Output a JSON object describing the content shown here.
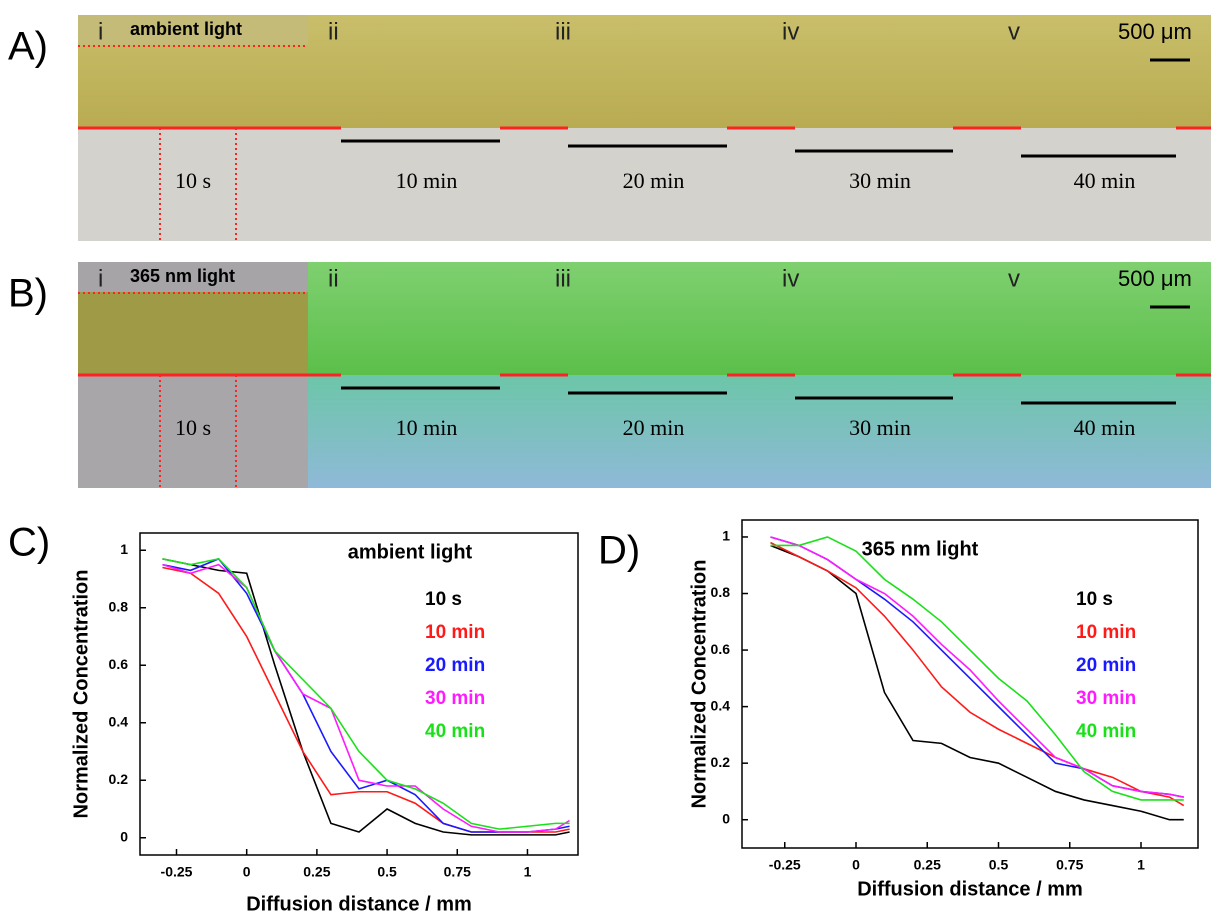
{
  "panels": [
    {
      "label": "A)",
      "light": "ambient light",
      "scale": "500 μm",
      "numerals": [
        "i",
        "ii",
        "iii",
        "iv",
        "v"
      ],
      "times": [
        "10 s",
        "10 min",
        "20 min",
        "30 min",
        "40 min"
      ]
    },
    {
      "label": "B)",
      "light": "365 nm light",
      "scale": "500 μm",
      "numerals": [
        "i",
        "ii",
        "iii",
        "iv",
        "v"
      ],
      "times": [
        "10 s",
        "10 min",
        "20 min",
        "30 min",
        "40 min"
      ]
    }
  ],
  "chart_data": [
    {
      "type": "line",
      "label": "C)",
      "title": "ambient light",
      "xlabel": "Diffusion distance / mm",
      "ylabel": "Normalized Concentration",
      "x": [
        -0.3,
        -0.2,
        -0.1,
        0,
        0.1,
        0.2,
        0.3,
        0.4,
        0.5,
        0.6,
        0.7,
        0.8,
        0.9,
        1.0,
        1.1,
        1.15
      ],
      "series": [
        {
          "name": "10 s",
          "color": "#000000",
          "values": [
            0.97,
            0.95,
            0.93,
            0.92,
            0.6,
            0.3,
            0.05,
            0.02,
            0.1,
            0.05,
            0.02,
            0.01,
            0.01,
            0.01,
            0.01,
            0.02
          ]
        },
        {
          "name": "10 min",
          "color": "#ff1a1a",
          "values": [
            0.94,
            0.92,
            0.85,
            0.7,
            0.5,
            0.3,
            0.15,
            0.16,
            0.16,
            0.12,
            0.05,
            0.02,
            0.02,
            0.02,
            0.02,
            0.03
          ]
        },
        {
          "name": "20 min",
          "color": "#1a1aff",
          "values": [
            0.95,
            0.93,
            0.97,
            0.85,
            0.65,
            0.5,
            0.3,
            0.17,
            0.2,
            0.15,
            0.05,
            0.02,
            0.02,
            0.02,
            0.03,
            0.04
          ]
        },
        {
          "name": "30 min",
          "color": "#ff1aff",
          "values": [
            0.95,
            0.92,
            0.95,
            0.87,
            0.65,
            0.5,
            0.45,
            0.2,
            0.18,
            0.18,
            0.1,
            0.04,
            0.02,
            0.02,
            0.03,
            0.06
          ]
        },
        {
          "name": "40 min",
          "color": "#1ae01a",
          "values": [
            0.97,
            0.95,
            0.97,
            0.87,
            0.65,
            0.55,
            0.45,
            0.3,
            0.2,
            0.17,
            0.12,
            0.05,
            0.03,
            0.04,
            0.05,
            0.05
          ]
        }
      ],
      "xlim": [
        -0.38,
        1.18
      ],
      "ylim": [
        -0.06,
        1.06
      ],
      "xticks": [
        -0.25,
        0,
        0.25,
        0.5,
        0.75,
        1
      ],
      "yticks": [
        0,
        0.2,
        0.4,
        0.6,
        0.8,
        1
      ]
    },
    {
      "type": "line",
      "label": "D)",
      "title": "365 nm light",
      "xlabel": "Diffusion distance / mm",
      "ylabel": "Normalized Concentration",
      "x": [
        -0.3,
        -0.2,
        -0.1,
        0,
        0.1,
        0.2,
        0.3,
        0.4,
        0.5,
        0.6,
        0.7,
        0.8,
        0.9,
        1.0,
        1.1,
        1.15
      ],
      "series": [
        {
          "name": "10 s",
          "color": "#000000",
          "values": [
            0.97,
            0.93,
            0.88,
            0.8,
            0.45,
            0.28,
            0.27,
            0.22,
            0.2,
            0.15,
            0.1,
            0.07,
            0.05,
            0.03,
            0.0,
            0.0
          ]
        },
        {
          "name": "10 min",
          "color": "#ff1a1a",
          "values": [
            0.98,
            0.93,
            0.88,
            0.82,
            0.72,
            0.6,
            0.47,
            0.38,
            0.32,
            0.27,
            0.22,
            0.18,
            0.15,
            0.1,
            0.08,
            0.05
          ]
        },
        {
          "name": "20 min",
          "color": "#1a1aff",
          "values": [
            1.0,
            0.97,
            0.92,
            0.85,
            0.78,
            0.7,
            0.6,
            0.5,
            0.4,
            0.3,
            0.2,
            0.18,
            0.12,
            0.1,
            0.09,
            0.08
          ]
        },
        {
          "name": "30 min",
          "color": "#ff1aff",
          "values": [
            1.0,
            0.97,
            0.92,
            0.85,
            0.8,
            0.72,
            0.62,
            0.53,
            0.42,
            0.32,
            0.22,
            0.18,
            0.12,
            0.1,
            0.09,
            0.08
          ]
        },
        {
          "name": "40 min",
          "color": "#1ae01a",
          "values": [
            0.97,
            0.97,
            1.0,
            0.95,
            0.85,
            0.78,
            0.7,
            0.6,
            0.5,
            0.42,
            0.3,
            0.17,
            0.1,
            0.07,
            0.07,
            0.07
          ]
        }
      ],
      "xlim": [
        -0.4,
        1.2
      ],
      "ylim": [
        -0.1,
        1.06
      ],
      "xticks": [
        -0.25,
        0,
        0.25,
        0.5,
        0.75,
        1
      ],
      "yticks": [
        0,
        0.2,
        0.4,
        0.6,
        0.8,
        1
      ]
    }
  ]
}
